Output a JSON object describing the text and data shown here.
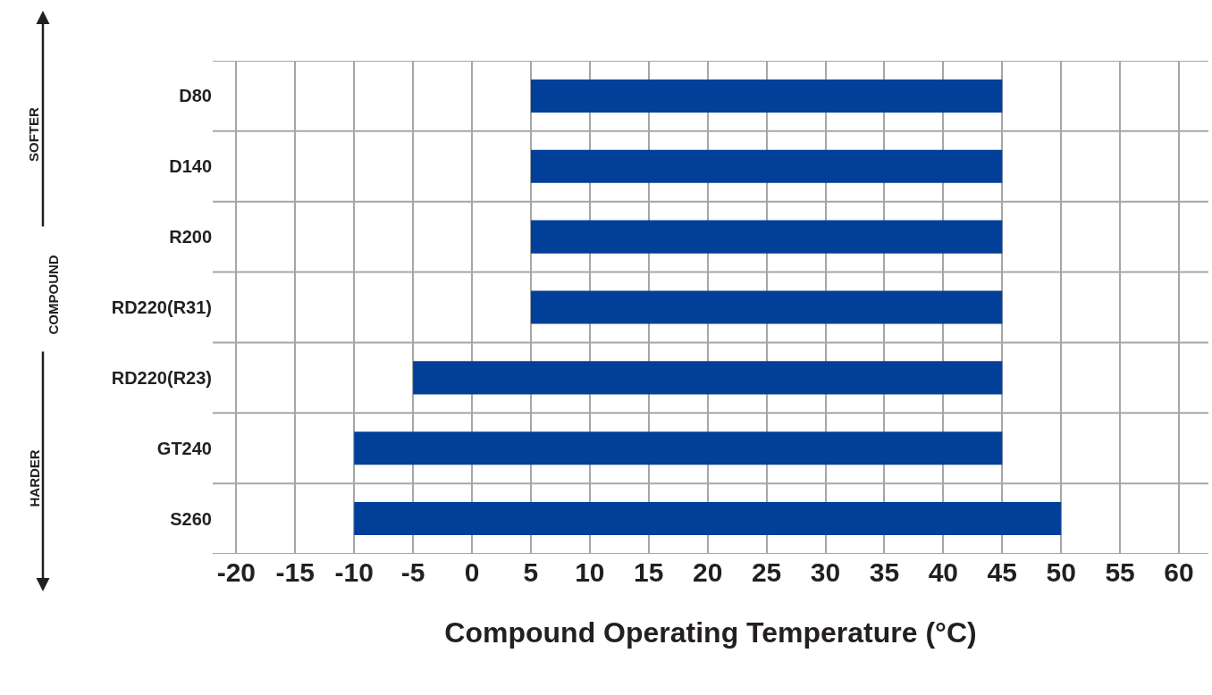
{
  "chart_data": {
    "type": "bar",
    "orientation": "horizontal",
    "xlabel": "Compound Operating Temperature (°C)",
    "categories": [
      "D80",
      "D140",
      "R200",
      "RD220(R31)",
      "RD220(R23)",
      "GT240",
      "S260"
    ],
    "base": [
      5,
      5,
      5,
      5,
      -5,
      -10,
      -10
    ],
    "values": [
      40,
      40,
      40,
      40,
      50,
      55,
      60
    ],
    "color": "#023f98",
    "xlim": [
      -22,
      62.5
    ],
    "xticks": [
      -20,
      -15,
      -10,
      -5,
      0,
      5,
      10,
      15,
      20,
      25,
      30,
      35,
      40,
      45,
      50,
      55,
      60
    ],
    "grid": true,
    "annotations": [
      "SOFTER",
      "COMPOUND",
      "HARDER"
    ]
  }
}
